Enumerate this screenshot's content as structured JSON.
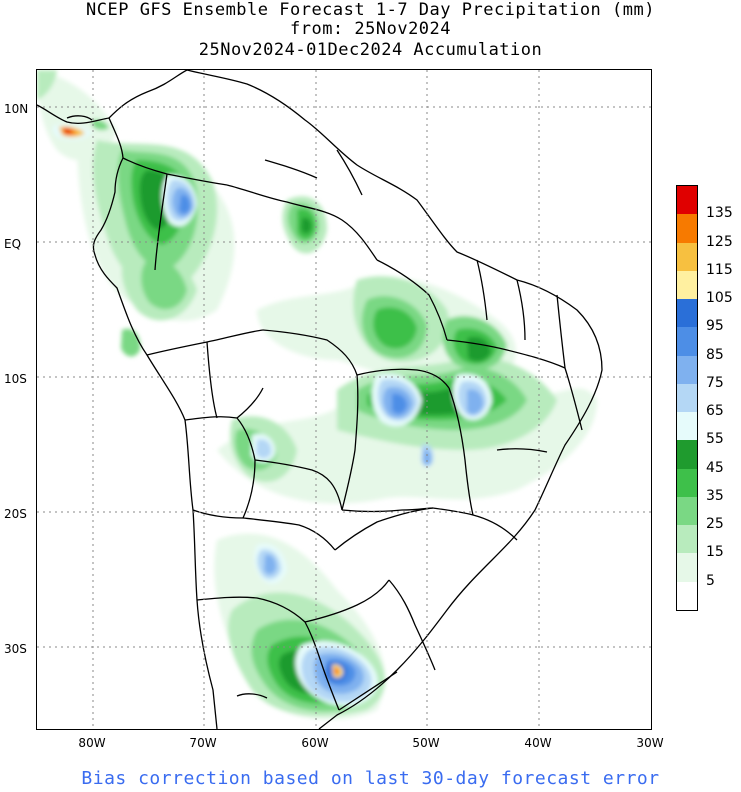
{
  "title": {
    "line1": "NCEP GFS Ensemble Forecast 1-7 Day Precipitation (mm)",
    "line2": "from: 25Nov2024",
    "line3": "25Nov2024-01Dec2024 Accumulation"
  },
  "axes": {
    "lat_labels": [
      "10N",
      "EQ",
      "10S",
      "20S",
      "30S"
    ],
    "lon_labels": [
      "80W",
      "70W",
      "60W",
      "50W",
      "40W",
      "30W"
    ]
  },
  "legend": {
    "labels": [
      "135",
      "125",
      "115",
      "105",
      "95",
      "85",
      "75",
      "65",
      "55",
      "45",
      "35",
      "25",
      "15",
      "5"
    ],
    "colors": [
      "#e00000",
      "#f77a00",
      "#f7c040",
      "#fff0a0",
      "#2a6fd8",
      "#4d8ee6",
      "#7fb1ef",
      "#b4d7f5",
      "#e6fbfb",
      "#1f9b2e",
      "#3ec04a",
      "#7ad884",
      "#b8ebbd",
      "#e6f8e8",
      "#ffffff"
    ]
  },
  "footer": "Bias correction based on last 30-day forecast error"
}
